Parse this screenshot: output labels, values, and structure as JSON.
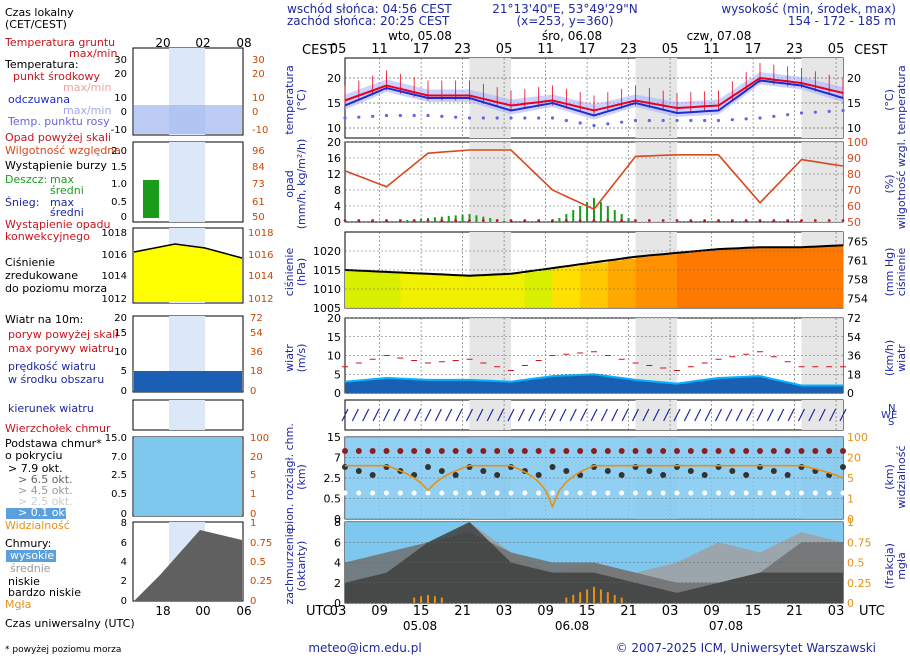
{
  "header": {
    "sunrise": "wschód słońca: 04:56 CEST",
    "sunset": "zachód słońca: 20:25 CEST",
    "coords": "21°13'40\"E, 53°49'29\"N",
    "grid": "(x=253, y=360)",
    "altitude_title": "wysokość (min, środek, max)",
    "altitude_values": "154 - 172 - 185 m"
  },
  "time_axis": {
    "local_label": "CEST",
    "utc_label": "UTC",
    "local_ticks": [
      "05",
      "11",
      "17",
      "23",
      "05",
      "11",
      "17",
      "23",
      "05",
      "11",
      "17",
      "23",
      "05"
    ],
    "utc_ticks": [
      "03",
      "09",
      "15",
      "21",
      "03",
      "09",
      "15",
      "21",
      "03",
      "09",
      "15",
      "21",
      "03"
    ],
    "day_labels_top": [
      "wto, 05.08",
      "śro, 06.08",
      "czw, 07.08"
    ],
    "day_labels_bottom": [
      "05.08",
      "06.08",
      "07.08"
    ]
  },
  "legend": {
    "local_time": "Czas lokalny",
    "local_time2": "(CET/CEST)",
    "legend_ticks_top": [
      "20",
      "02",
      "08"
    ],
    "legend_ticks_bottom": [
      "18",
      "00",
      "06"
    ],
    "ground_temp": "Temperatura gruntu",
    "ground_temp2": "max/min",
    "temperature": "Temperatura:",
    "mid_point": "punkt środkowy",
    "maxmin": "max/min",
    "felt": "odczuwana",
    "felt_maxmin": "max/min",
    "dew_point": "Temp. punktu rosy",
    "rain_over": "Opad powyżej skali",
    "humidity": "Wilgotność względna",
    "storm": "Wystąpienie burzy",
    "rain": "Deszcz:",
    "rain_max": "max",
    "rain_mean": "średni",
    "snow": "Śnieg:",
    "snow_max": "max",
    "snow_mean": "średni",
    "conv_rain": "Wystąpienie opadu",
    "conv_rain2": "konwekcyjnego",
    "pressure1": "Ciśnienie",
    "pressure2": "zredukowane",
    "pressure3": "do poziomu morza",
    "wind": "Wiatr na 10m:",
    "gust_over": "poryw powyżej skali",
    "gust_max": "max porywy wiatru",
    "wind_mean": "prędkość wiatru",
    "wind_mean2": "w środku obszaru",
    "wind_dir": "kierunek wiatru",
    "cloud_top": "Wierzchołek chmur",
    "cloud_base": "Podstawa chmur*",
    "cloud_base2": "o pokryciu",
    "cov1": "> 7.9 okt.",
    "cov2": "> 6.5 okt.",
    "cov3": "> 4.5 okt.",
    "cov4": "> 2.5 okt.",
    "cov5": "> 0.1 okt.",
    "visibility": "Widzialność",
    "clouds": "Chmury:",
    "high": "wysokie",
    "mid": "średnie",
    "low": "niskie",
    "vlow": "bardzo niskie",
    "fog": "Mgła",
    "utc_time": "Czas uniwersalny (UTC)",
    "footnote": "* powyżej poziomu morza"
  },
  "axis_titles": {
    "temp_left": "temperatura",
    "temp_left2": "(°C)",
    "temp_right": "temperatura",
    "temp_right2": "(°C)",
    "precip_left": "opad",
    "precip_left2": "(mm/h, kg/m²/h)",
    "precip_right": "wilgotność wzgl.",
    "precip_right2": "(%)",
    "press_left": "ciśnienie",
    "press_left2": "(hPa)",
    "press_right": "ciśnienie",
    "press_right2": "(mm Hg)",
    "wind_left": "wiatr",
    "wind_left2": "(m/s)",
    "wind_right": "wiatr",
    "wind_right2": "(km/h)",
    "cloud_left": "pion. rozciągł. chm.",
    "cloud_left2": "(km)",
    "cloud_right": "widzialność",
    "cloud_right2": "(km)",
    "cover_left": "zachmurzenie",
    "cover_left2": "(oktanty)",
    "cover_right": "mgła",
    "cover_right2": "(frakcja)"
  },
  "footer": {
    "email": "meteo@icm.edu.pl",
    "copyright": "© 2007-2025 ICM, Uniwersytet Warszawski"
  },
  "colors": {
    "temp": "#e8001c",
    "felt": "#1d2bcf",
    "dew": "#6464e6",
    "humidity": "#d9481e",
    "rain": "#1a9c1a",
    "pressure_line": "#000000",
    "gust": "#c8141e",
    "wind_mean": "#00b4ff",
    "wind_dir": "#1e28a0",
    "visibility": "#e69114",
    "night_band": "#e6e6e6"
  },
  "chart_data": [
    {
      "type": "line",
      "title": "temperatura",
      "ylabel": "temperatura (°C)",
      "ylim": [
        8,
        24
      ],
      "yticks": [
        10,
        15,
        20
      ],
      "right_yticks": [
        10,
        15,
        20
      ],
      "x_hours": [
        0,
        6,
        12,
        18,
        24,
        30,
        36,
        42,
        48,
        54,
        60,
        66,
        72
      ],
      "series": [
        {
          "name": "punkt środkowy",
          "values": [
            15.5,
            18.5,
            16.5,
            16.5,
            14.5,
            15.5,
            13.5,
            15.5,
            14,
            14.5,
            20,
            19,
            17
          ]
        },
        {
          "name": "odczuwana",
          "values": [
            14.5,
            18,
            16,
            16,
            13.5,
            15,
            12.5,
            15,
            13,
            13.5,
            19.5,
            18.5,
            16
          ]
        },
        {
          "name": "Temp. punktu rosy",
          "values": [
            12,
            12.5,
            12.5,
            12,
            12,
            12,
            10.5,
            11.5,
            11.5,
            11.5,
            12,
            13,
            13.5
          ]
        }
      ]
    },
    {
      "type": "line",
      "title": "opad",
      "ylabel": "opad (mm/h, kg/m²/h)",
      "ylim": [
        0,
        20
      ],
      "yticks": [
        0,
        4,
        8,
        12,
        16,
        20
      ],
      "right_ylabel": "wilgotność wzgl. (%)",
      "right_ylim": [
        50,
        100
      ],
      "right_yticks": [
        50,
        60,
        70,
        80,
        90,
        100
      ],
      "x_hours": [
        0,
        6,
        12,
        18,
        24,
        30,
        36,
        42,
        48,
        54,
        60,
        66,
        72
      ],
      "series": [
        {
          "name": "Wilgotność względna",
          "values": [
            82,
            72,
            93,
            95,
            95,
            70,
            58,
            91,
            92,
            92,
            62,
            89,
            85
          ]
        },
        {
          "name": "Deszcz średni",
          "values": [
            0,
            0,
            1,
            2,
            0,
            0,
            6,
            0,
            0,
            0,
            0,
            0,
            0
          ]
        }
      ]
    },
    {
      "type": "area",
      "title": "ciśnienie",
      "ylabel": "ciśnienie (hPa)",
      "ylim": [
        1005,
        1025
      ],
      "yticks": [
        1005,
        1010,
        1015,
        1020
      ],
      "right_ylabel": "ciśnienie (mm Hg)",
      "right_yticks": [
        754,
        758,
        761,
        765
      ],
      "x_hours": [
        0,
        6,
        12,
        18,
        24,
        30,
        36,
        42,
        48,
        54,
        60,
        66,
        72
      ],
      "series": [
        {
          "name": "Ciśnienie",
          "values": [
            1015,
            1014.5,
            1014,
            1013.5,
            1014,
            1015.5,
            1017,
            1018.5,
            1019.5,
            1020.5,
            1021,
            1021,
            1021.5
          ]
        }
      ]
    },
    {
      "type": "line",
      "title": "wiatr",
      "ylabel": "wiatr (m/s)",
      "ylim": [
        0,
        20
      ],
      "yticks": [
        0,
        5,
        10,
        15,
        20
      ],
      "right_ylabel": "wiatr (km/h)",
      "right_yticks": [
        0,
        18,
        36,
        54,
        72
      ],
      "x_hours": [
        0,
        6,
        12,
        18,
        24,
        30,
        36,
        42,
        48,
        54,
        60,
        66,
        72
      ],
      "series": [
        {
          "name": "max porywy wiatru",
          "values": [
            7,
            10,
            8,
            9,
            6,
            10,
            11,
            8,
            6,
            9,
            11,
            7,
            7
          ]
        },
        {
          "name": "prędkość wiatru",
          "values": [
            3,
            4,
            3.5,
            3.5,
            3,
            4.5,
            5,
            3.5,
            2.5,
            4,
            4.5,
            2,
            2
          ]
        }
      ]
    },
    {
      "type": "scatter",
      "title": "pion. rozciągł. chm.",
      "ylabel": "pion. rozciągł. chm. (km)",
      "yticks": [
        0,
        0.5,
        2.5,
        7.0,
        15.0
      ],
      "right_ylabel": "widzialność (km)",
      "right_yticks": [
        0,
        1,
        5,
        20,
        100
      ],
      "x_hours": [
        0,
        6,
        12,
        18,
        24,
        30,
        36,
        42,
        48,
        54,
        60,
        66,
        72
      ],
      "series": [
        {
          "name": "Widzialność",
          "values": [
            20,
            20,
            5,
            20,
            20,
            2,
            20,
            20,
            20,
            20,
            20,
            20,
            10
          ]
        },
        {
          "name": "Wierzchołek chmur",
          "values": [
            11,
            11,
            11,
            11,
            11,
            11,
            11,
            11,
            11,
            11,
            11,
            11,
            11
          ]
        }
      ]
    },
    {
      "type": "area",
      "title": "zachmurzenie",
      "ylabel": "zachmurzenie (oktanty)",
      "ylim": [
        0,
        8
      ],
      "yticks": [
        0,
        2,
        4,
        6,
        8
      ],
      "right_ylabel": "mgła (frakcja)",
      "right_yticks": [
        0,
        0.25,
        0.5,
        0.75,
        1
      ],
      "x_hours": [
        0,
        6,
        12,
        18,
        24,
        30,
        36,
        42,
        48,
        54,
        60,
        66,
        72
      ],
      "series": [
        {
          "name": "wysokie",
          "values": [
            2,
            3,
            4,
            8,
            5,
            3,
            4,
            3,
            4,
            6,
            5,
            7,
            6
          ]
        },
        {
          "name": "średnie",
          "values": [
            4,
            5,
            6,
            7,
            5,
            4,
            4,
            3,
            2,
            2,
            3,
            6,
            6
          ]
        },
        {
          "name": "niskie",
          "values": [
            2,
            3,
            6,
            8,
            4,
            3,
            3,
            2,
            1,
            2,
            3,
            3,
            3
          ]
        },
        {
          "name": "Mgła",
          "values": [
            0,
            0,
            0.1,
            0,
            0,
            0,
            0.2,
            0,
            0,
            0,
            0,
            0,
            0
          ]
        }
      ]
    }
  ]
}
